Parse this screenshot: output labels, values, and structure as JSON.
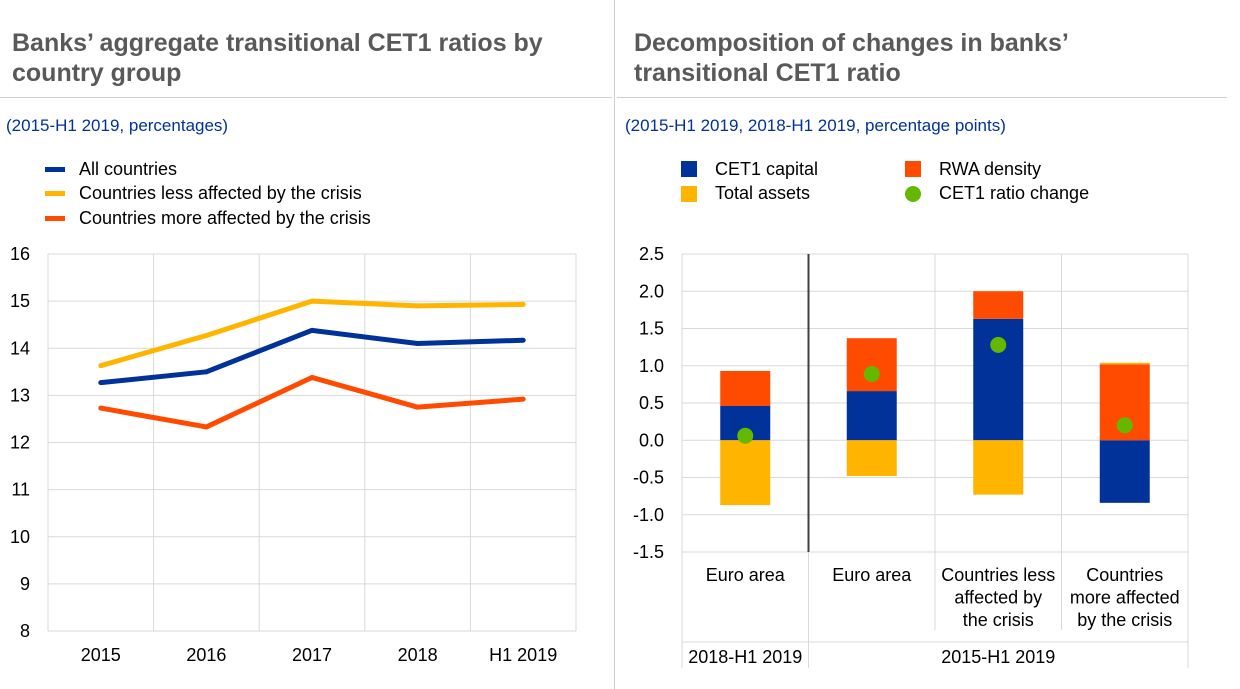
{
  "left": {
    "title_line1": "Banks’ aggregate transitional CET1 ratios by",
    "title_line2": "country group",
    "subtitle": "(2015-H1 2019, percentages)"
  },
  "right": {
    "title_line1": "Decomposition of changes in banks’",
    "title_line2": "transitional CET1 ratio",
    "subtitle": "(2015-H1 2019, 2018-H1 2019, percentage points)"
  },
  "chart_data": [
    {
      "type": "line",
      "title": "Banks’ aggregate transitional CET1 ratios by country group",
      "subtitle": "(2015-H1 2019, percentages)",
      "categories": [
        "2015",
        "2016",
        "2017",
        "2018",
        "H1 2019"
      ],
      "ylim": [
        8,
        16
      ],
      "yticks": [
        8,
        9,
        10,
        11,
        12,
        13,
        14,
        15,
        16
      ],
      "grid": true,
      "legend_position": "top-left",
      "series": [
        {
          "name": "All countries",
          "color": "#003299",
          "values": [
            13.27,
            13.5,
            14.38,
            14.1,
            14.17
          ]
        },
        {
          "name": "Countries less affected by the crisis",
          "color": "#ffb400",
          "values": [
            13.63,
            14.27,
            15.0,
            14.9,
            14.93
          ]
        },
        {
          "name": "Countries more affected by the crisis",
          "color": "#ff4b00",
          "values": [
            12.73,
            12.33,
            13.38,
            12.75,
            12.92
          ]
        }
      ]
    },
    {
      "type": "bar",
      "stacked": true,
      "title": "Decomposition of changes in banks’ transitional CET1 ratio",
      "subtitle": "(2015-H1 2019, 2018-H1 2019, percentage points)",
      "categories": [
        "Euro area",
        "Euro area",
        "Countries less affected by the crisis",
        "Countries more affected by the crisis"
      ],
      "category_label_lines": [
        [
          "Euro area"
        ],
        [
          "Euro area"
        ],
        [
          "Countries less",
          "affected by",
          "the crisis"
        ],
        [
          "Countries",
          "more affected",
          "by the crisis"
        ]
      ],
      "groups": [
        {
          "label": "2018-H1 2019",
          "categories": [
            0
          ]
        },
        {
          "label": "2015-H1 2019",
          "categories": [
            1,
            2,
            3
          ]
        }
      ],
      "ylim": [
        -1.5,
        2.5
      ],
      "yticks": [
        "2.5",
        "2.0",
        "1.5",
        "1.0",
        "0.5",
        "0.0",
        "-0.5",
        "-1.0",
        "-1.5"
      ],
      "grid": true,
      "legend_position": "top",
      "series": [
        {
          "name": "CET1 capital",
          "color": "#003299",
          "kind": "bar",
          "values": [
            0.46,
            0.66,
            1.63,
            -0.84
          ]
        },
        {
          "name": "RWA density",
          "color": "#ff4b00",
          "kind": "bar",
          "values": [
            0.47,
            0.71,
            0.37,
            1.02
          ]
        },
        {
          "name": "Total assets",
          "color": "#ffb400",
          "kind": "bar",
          "values": [
            -0.87,
            -0.48,
            -0.73,
            0.02
          ]
        },
        {
          "name": "CET1 ratio change",
          "color": "#65b800",
          "kind": "marker",
          "values": [
            0.06,
            0.89,
            1.28,
            0.2
          ]
        }
      ]
    }
  ]
}
